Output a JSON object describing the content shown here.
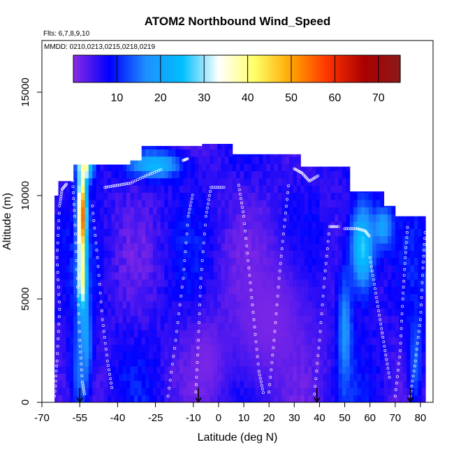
{
  "chart_data": {
    "type": "heatmap",
    "title": "ATOM2 Northbound Wind_Speed",
    "annotations": {
      "flights": "Flts: 6,7,8,9,10",
      "dates": "MMDD: 0210,0213,0215,0218,0219"
    },
    "xlabel": "Latitude (deg N)",
    "ylabel": "Altitude (m)",
    "xlim": [
      -70,
      85
    ],
    "ylim": [
      0,
      17500
    ],
    "x_ticks": [
      -70,
      -55,
      -40,
      -25,
      -10,
      0,
      10,
      20,
      30,
      40,
      50,
      60,
      70,
      80
    ],
    "x_tick_labels": [
      "-70",
      "-55",
      "-40",
      "-25",
      "-10",
      "0",
      "10",
      "20",
      "30",
      "40",
      "50",
      "60",
      "70",
      "80"
    ],
    "y_ticks": [
      0,
      5000,
      10000,
      15000
    ],
    "y_tick_labels": [
      "0",
      "5000",
      "10000",
      "15000"
    ],
    "colorbar": {
      "range": [
        0,
        75
      ],
      "ticks": [
        10,
        20,
        30,
        40,
        50,
        60,
        70
      ],
      "tick_labels": [
        "10",
        "20",
        "30",
        "40",
        "50",
        "60",
        "70"
      ],
      "colors": [
        "#8a2be2",
        "#0000ff",
        "#1e90ff",
        "#00bfff",
        "#ffffff",
        "#ffff66",
        "#ffa500",
        "#ff3300",
        "#aa0000",
        "#8b1a1a"
      ]
    },
    "value_field": {
      "background": 6,
      "features": [
        {
          "lat": -54,
          "alt": 9000,
          "lat_width": 1.8,
          "alt_width": 2400,
          "value": 55
        },
        {
          "lat": -54,
          "alt": 5800,
          "lat_width": 1.8,
          "alt_width": 1600,
          "value": 44
        },
        {
          "lat": -53,
          "alt": 11500,
          "lat_width": 3,
          "alt_width": 800,
          "value": 40
        },
        {
          "lat": -53,
          "alt": 3000,
          "lat_width": 2.5,
          "alt_width": 2000,
          "value": 24
        },
        {
          "lat": -55,
          "alt": 1500,
          "lat_width": 4,
          "alt_width": 2500,
          "value": 15
        },
        {
          "lat": -25,
          "alt": 11500,
          "lat_width": 10,
          "alt_width": 600,
          "value": 24
        },
        {
          "lat": 57,
          "alt": 7500,
          "lat_width": 5,
          "alt_width": 2200,
          "value": 27
        },
        {
          "lat": 50,
          "alt": 3500,
          "lat_width": 3,
          "alt_width": 3000,
          "value": 19
        },
        {
          "lat": 65,
          "alt": 8500,
          "lat_width": 4,
          "alt_width": 1000,
          "value": 20
        },
        {
          "lat": 20,
          "alt": 4000,
          "lat_width": 18,
          "alt_width": 4000,
          "value": 1
        },
        {
          "lat": -5,
          "alt": 2000,
          "lat_width": 8,
          "alt_width": 2000,
          "value": 1
        },
        {
          "lat": 78,
          "alt": 2000,
          "lat_width": 3,
          "alt_width": 2500,
          "value": 14
        }
      ],
      "top_envelope": [
        {
          "lat": -64,
          "alt": 10000
        },
        {
          "lat": -63,
          "alt": 10700
        },
        {
          "lat": -57,
          "alt": 11500
        },
        {
          "lat": -35,
          "alt": 11700
        },
        {
          "lat": -31,
          "alt": 12400
        },
        {
          "lat": -7,
          "alt": 12500
        },
        {
          "lat": 5,
          "alt": 12000
        },
        {
          "lat": 32,
          "alt": 11400
        },
        {
          "lat": 52,
          "alt": 10200
        },
        {
          "lat": 65,
          "alt": 9500
        },
        {
          "lat": 70,
          "alt": 9000
        },
        {
          "lat": 82,
          "alt": 8800
        }
      ],
      "lat_range": [
        -65,
        82
      ]
    },
    "flight_tracks": [
      [
        [
          -65,
          300
        ],
        [
          -64,
          2000
        ],
        [
          -63,
          4500
        ],
        [
          -64,
          7000
        ],
        [
          -63,
          9500
        ],
        [
          -62,
          10300
        ],
        [
          -60,
          10600
        ]
      ],
      [
        [
          -58,
          11000
        ],
        [
          -57,
          9000
        ],
        [
          -56,
          6000
        ],
        [
          -55,
          3000
        ],
        [
          -54,
          1000
        ],
        [
          -53,
          300
        ]
      ],
      [
        [
          -50,
          9500
        ],
        [
          -48,
          7000
        ],
        [
          -46,
          4000
        ],
        [
          -44,
          2000
        ],
        [
          -42,
          500
        ]
      ],
      [
        [
          -45,
          10400
        ],
        [
          -40,
          10500
        ],
        [
          -35,
          10600
        ],
        [
          -28,
          11000
        ],
        [
          -22,
          11300
        ]
      ],
      [
        [
          -14,
          11700
        ],
        [
          -12,
          11800
        ]
      ],
      [
        [
          -20,
          300
        ],
        [
          -17,
          3000
        ],
        [
          -14,
          6000
        ],
        [
          -12,
          9000
        ],
        [
          -10,
          10200
        ]
      ],
      [
        [
          -9,
          500
        ],
        [
          -8,
          3000
        ],
        [
          -7,
          6000
        ],
        [
          -5,
          9000
        ],
        [
          -3,
          10400
        ],
        [
          3,
          10400
        ]
      ],
      [
        [
          8,
          10500
        ],
        [
          10,
          9000
        ],
        [
          12,
          6500
        ],
        [
          14,
          4000
        ],
        [
          16,
          1500
        ],
        [
          18,
          300
        ]
      ],
      [
        [
          20,
          500
        ],
        [
          22,
          3000
        ],
        [
          24,
          6000
        ],
        [
          26,
          8500
        ],
        [
          28,
          10800
        ]
      ],
      [
        [
          30,
          11300
        ],
        [
          33,
          11100
        ],
        [
          36,
          10700
        ],
        [
          40,
          11000
        ]
      ],
      [
        [
          38,
          400
        ],
        [
          40,
          3000
        ],
        [
          42,
          6000
        ],
        [
          44,
          8500
        ],
        [
          48,
          8500
        ]
      ],
      [
        [
          50,
          8400
        ],
        [
          55,
          8400
        ],
        [
          58,
          8300
        ],
        [
          60,
          8000
        ]
      ],
      [
        [
          60,
          7000
        ],
        [
          62,
          5500
        ],
        [
          64,
          4000
        ],
        [
          66,
          2500
        ],
        [
          68,
          1000
        ]
      ],
      [
        [
          70,
          300
        ],
        [
          72,
          2500
        ],
        [
          73,
          5000
        ],
        [
          74,
          7000
        ],
        [
          75,
          8700
        ]
      ],
      [
        [
          76,
          300
        ],
        [
          78,
          2000
        ],
        [
          80,
          4000
        ],
        [
          81,
          6500
        ],
        [
          82,
          8500
        ]
      ]
    ],
    "arrows": [
      -55,
      -8,
      39,
      76
    ],
    "grid": false,
    "legend": "colorbar-top"
  }
}
